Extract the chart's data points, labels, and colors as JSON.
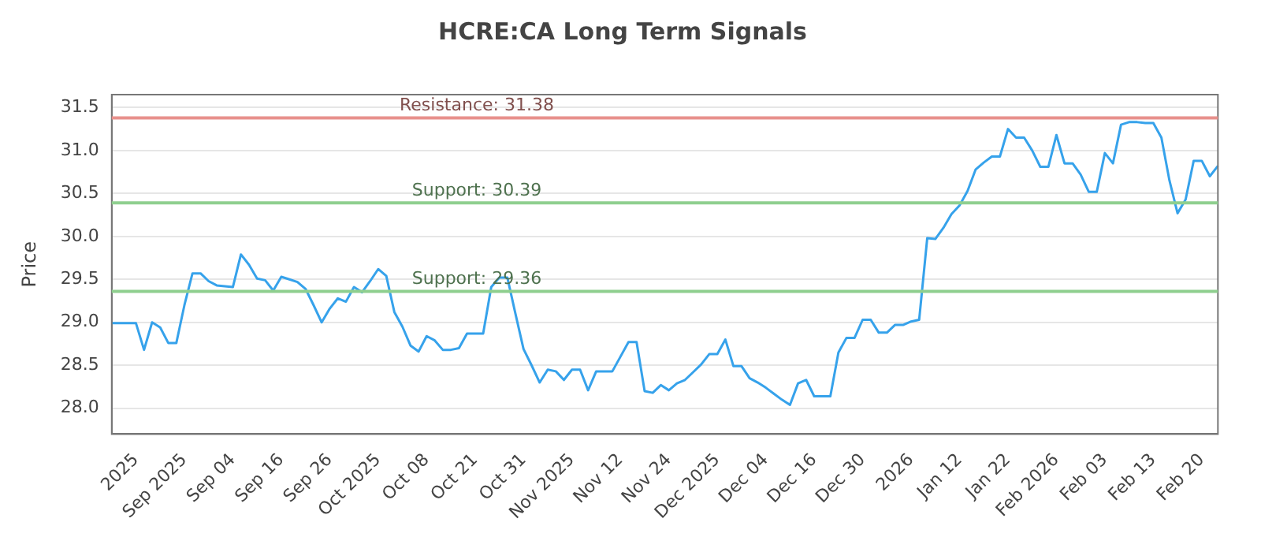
{
  "chart_data": {
    "type": "line",
    "title": "HCRE:CA Long Term Signals",
    "ylabel": "Price",
    "categories": [
      null,
      null,
      null,
      "2025",
      null,
      null,
      null,
      null,
      null,
      "Sep 2025",
      null,
      null,
      null,
      null,
      null,
      "Sep 04",
      null,
      null,
      null,
      null,
      null,
      "Sep 16",
      null,
      null,
      null,
      null,
      null,
      "Sep 26",
      null,
      null,
      null,
      null,
      null,
      "Oct 2025",
      null,
      null,
      null,
      null,
      null,
      "Oct 08",
      null,
      null,
      null,
      null,
      null,
      "Oct 21",
      null,
      null,
      null,
      null,
      null,
      "Oct 31",
      null,
      null,
      null,
      null,
      null,
      "Nov 2025",
      null,
      null,
      null,
      null,
      null,
      "Nov 12",
      null,
      null,
      null,
      null,
      null,
      "Nov 24",
      null,
      null,
      null,
      null,
      null,
      "Dec 2025",
      null,
      null,
      null,
      null,
      null,
      "Dec 04",
      null,
      null,
      null,
      null,
      null,
      "Dec 16",
      null,
      null,
      null,
      null,
      null,
      "Dec 30",
      null,
      null,
      null,
      null,
      null,
      "2026",
      null,
      null,
      null,
      null,
      null,
      "Jan 12",
      null,
      null,
      null,
      null,
      null,
      "Jan 22",
      null,
      null,
      null,
      null,
      null,
      "Feb 2026",
      null,
      null,
      null,
      null,
      null,
      "Feb 03",
      null,
      null,
      null,
      null,
      null,
      "Feb 13",
      null,
      null,
      null,
      null,
      null,
      "Feb 20",
      null,
      null
    ],
    "series": [
      {
        "color": "#36a2eb",
        "values": [
          28.99,
          28.99,
          28.99,
          28.99,
          28.68,
          29.0,
          28.94,
          28.76,
          28.76,
          29.2,
          29.57,
          29.57,
          29.48,
          29.43,
          29.42,
          29.41,
          29.79,
          29.67,
          29.51,
          29.49,
          29.37,
          29.53,
          29.5,
          29.47,
          29.39,
          29.2,
          29.0,
          29.16,
          29.28,
          29.24,
          29.41,
          29.35,
          29.48,
          29.62,
          29.54,
          29.12,
          28.95,
          28.73,
          28.66,
          28.84,
          28.79,
          28.68,
          28.68,
          28.7,
          28.87,
          28.87,
          28.87,
          29.41,
          29.52,
          29.52,
          29.1,
          28.69,
          28.5,
          28.3,
          28.45,
          28.43,
          28.33,
          28.45,
          28.45,
          28.21,
          28.43,
          28.43,
          28.43,
          28.6,
          28.77,
          28.77,
          28.2,
          28.18,
          28.27,
          28.21,
          28.29,
          28.33,
          28.42,
          28.51,
          28.63,
          28.63,
          28.8,
          28.49,
          28.49,
          28.35,
          28.3,
          28.24,
          28.17,
          28.1,
          28.04,
          28.29,
          28.33,
          28.14,
          28.14,
          28.14,
          28.65,
          28.82,
          28.82,
          29.03,
          29.03,
          28.88,
          28.88,
          28.97,
          28.97,
          29.01,
          29.03,
          29.98,
          29.97,
          30.1,
          30.26,
          30.36,
          30.53,
          30.78,
          30.86,
          30.93,
          30.93,
          31.25,
          31.15,
          31.15,
          31.0,
          30.81,
          30.81,
          31.18,
          30.85,
          30.85,
          30.72,
          30.52,
          30.52,
          30.97,
          30.85,
          31.3,
          31.33,
          31.33,
          31.32,
          31.32,
          31.15,
          30.65,
          30.27,
          30.43,
          30.88,
          30.88,
          30.7,
          30.82
        ]
      }
    ],
    "ylim": [
      27.7,
      31.65
    ],
    "yticks": [
      {
        "value": 28,
        "label": "28.0"
      },
      {
        "value": 28.5,
        "label": "28.5"
      },
      {
        "value": 29,
        "label": "29.0"
      },
      {
        "value": 29.5,
        "label": "29.5"
      },
      {
        "value": 30,
        "label": "30.0"
      },
      {
        "value": 30.5,
        "label": "30.5"
      },
      {
        "value": 31,
        "label": "31.0"
      },
      {
        "value": 31.5,
        "label": "31.5"
      }
    ],
    "ref_lines": [
      {
        "axis": "y",
        "value": 31.38,
        "label": "Resistance: 31.38",
        "color": "#e8908c"
      },
      {
        "axis": "y",
        "value": 30.39,
        "label": "Support: 30.39",
        "color": "#8fcf8f"
      },
      {
        "axis": "y",
        "value": 29.36,
        "label": "Support: 29.36",
        "color": "#8fcf8f"
      }
    ],
    "grid": "y",
    "legend": false,
    "marker": "none",
    "line_style": "solid"
  }
}
